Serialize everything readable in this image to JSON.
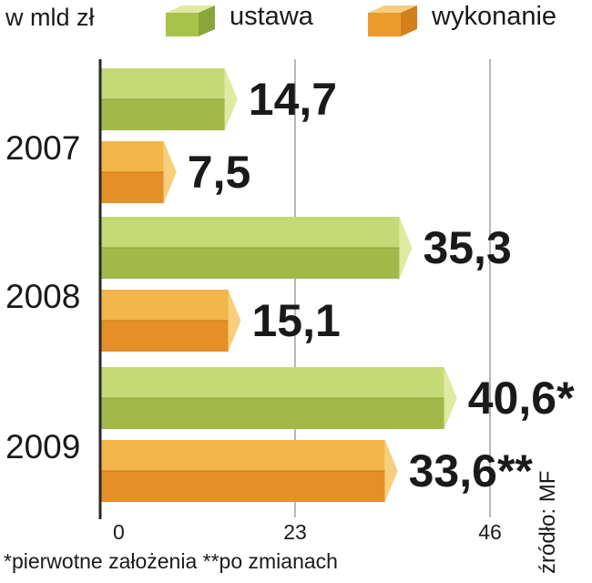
{
  "header": {
    "unit_label": "w mld zł"
  },
  "legend": [
    {
      "label": "ustawa",
      "color": "#a8c24a"
    },
    {
      "label": "wykonanie",
      "color": "#eb9a2c"
    }
  ],
  "chart_data": {
    "type": "bar",
    "orientation": "horizontal",
    "categories": [
      "2007",
      "2008",
      "2009"
    ],
    "series": [
      {
        "name": "ustawa",
        "values": [
          14.7,
          35.3,
          40.6
        ],
        "labels": [
          "14,7",
          "35,3",
          "40,6*"
        ]
      },
      {
        "name": "wykonanie",
        "values": [
          7.5,
          15.1,
          33.6
        ],
        "labels": [
          "7,5",
          "15,1",
          "33,6**"
        ]
      }
    ],
    "x_ticks": [
      0,
      23,
      46
    ],
    "x_tick_labels": [
      "0",
      "23",
      "46"
    ],
    "xlim": [
      0,
      46
    ],
    "grid": true,
    "legend_position": "top"
  },
  "footnote": "*pierwotne założenia **po zmianach",
  "source": "źródło: MF"
}
